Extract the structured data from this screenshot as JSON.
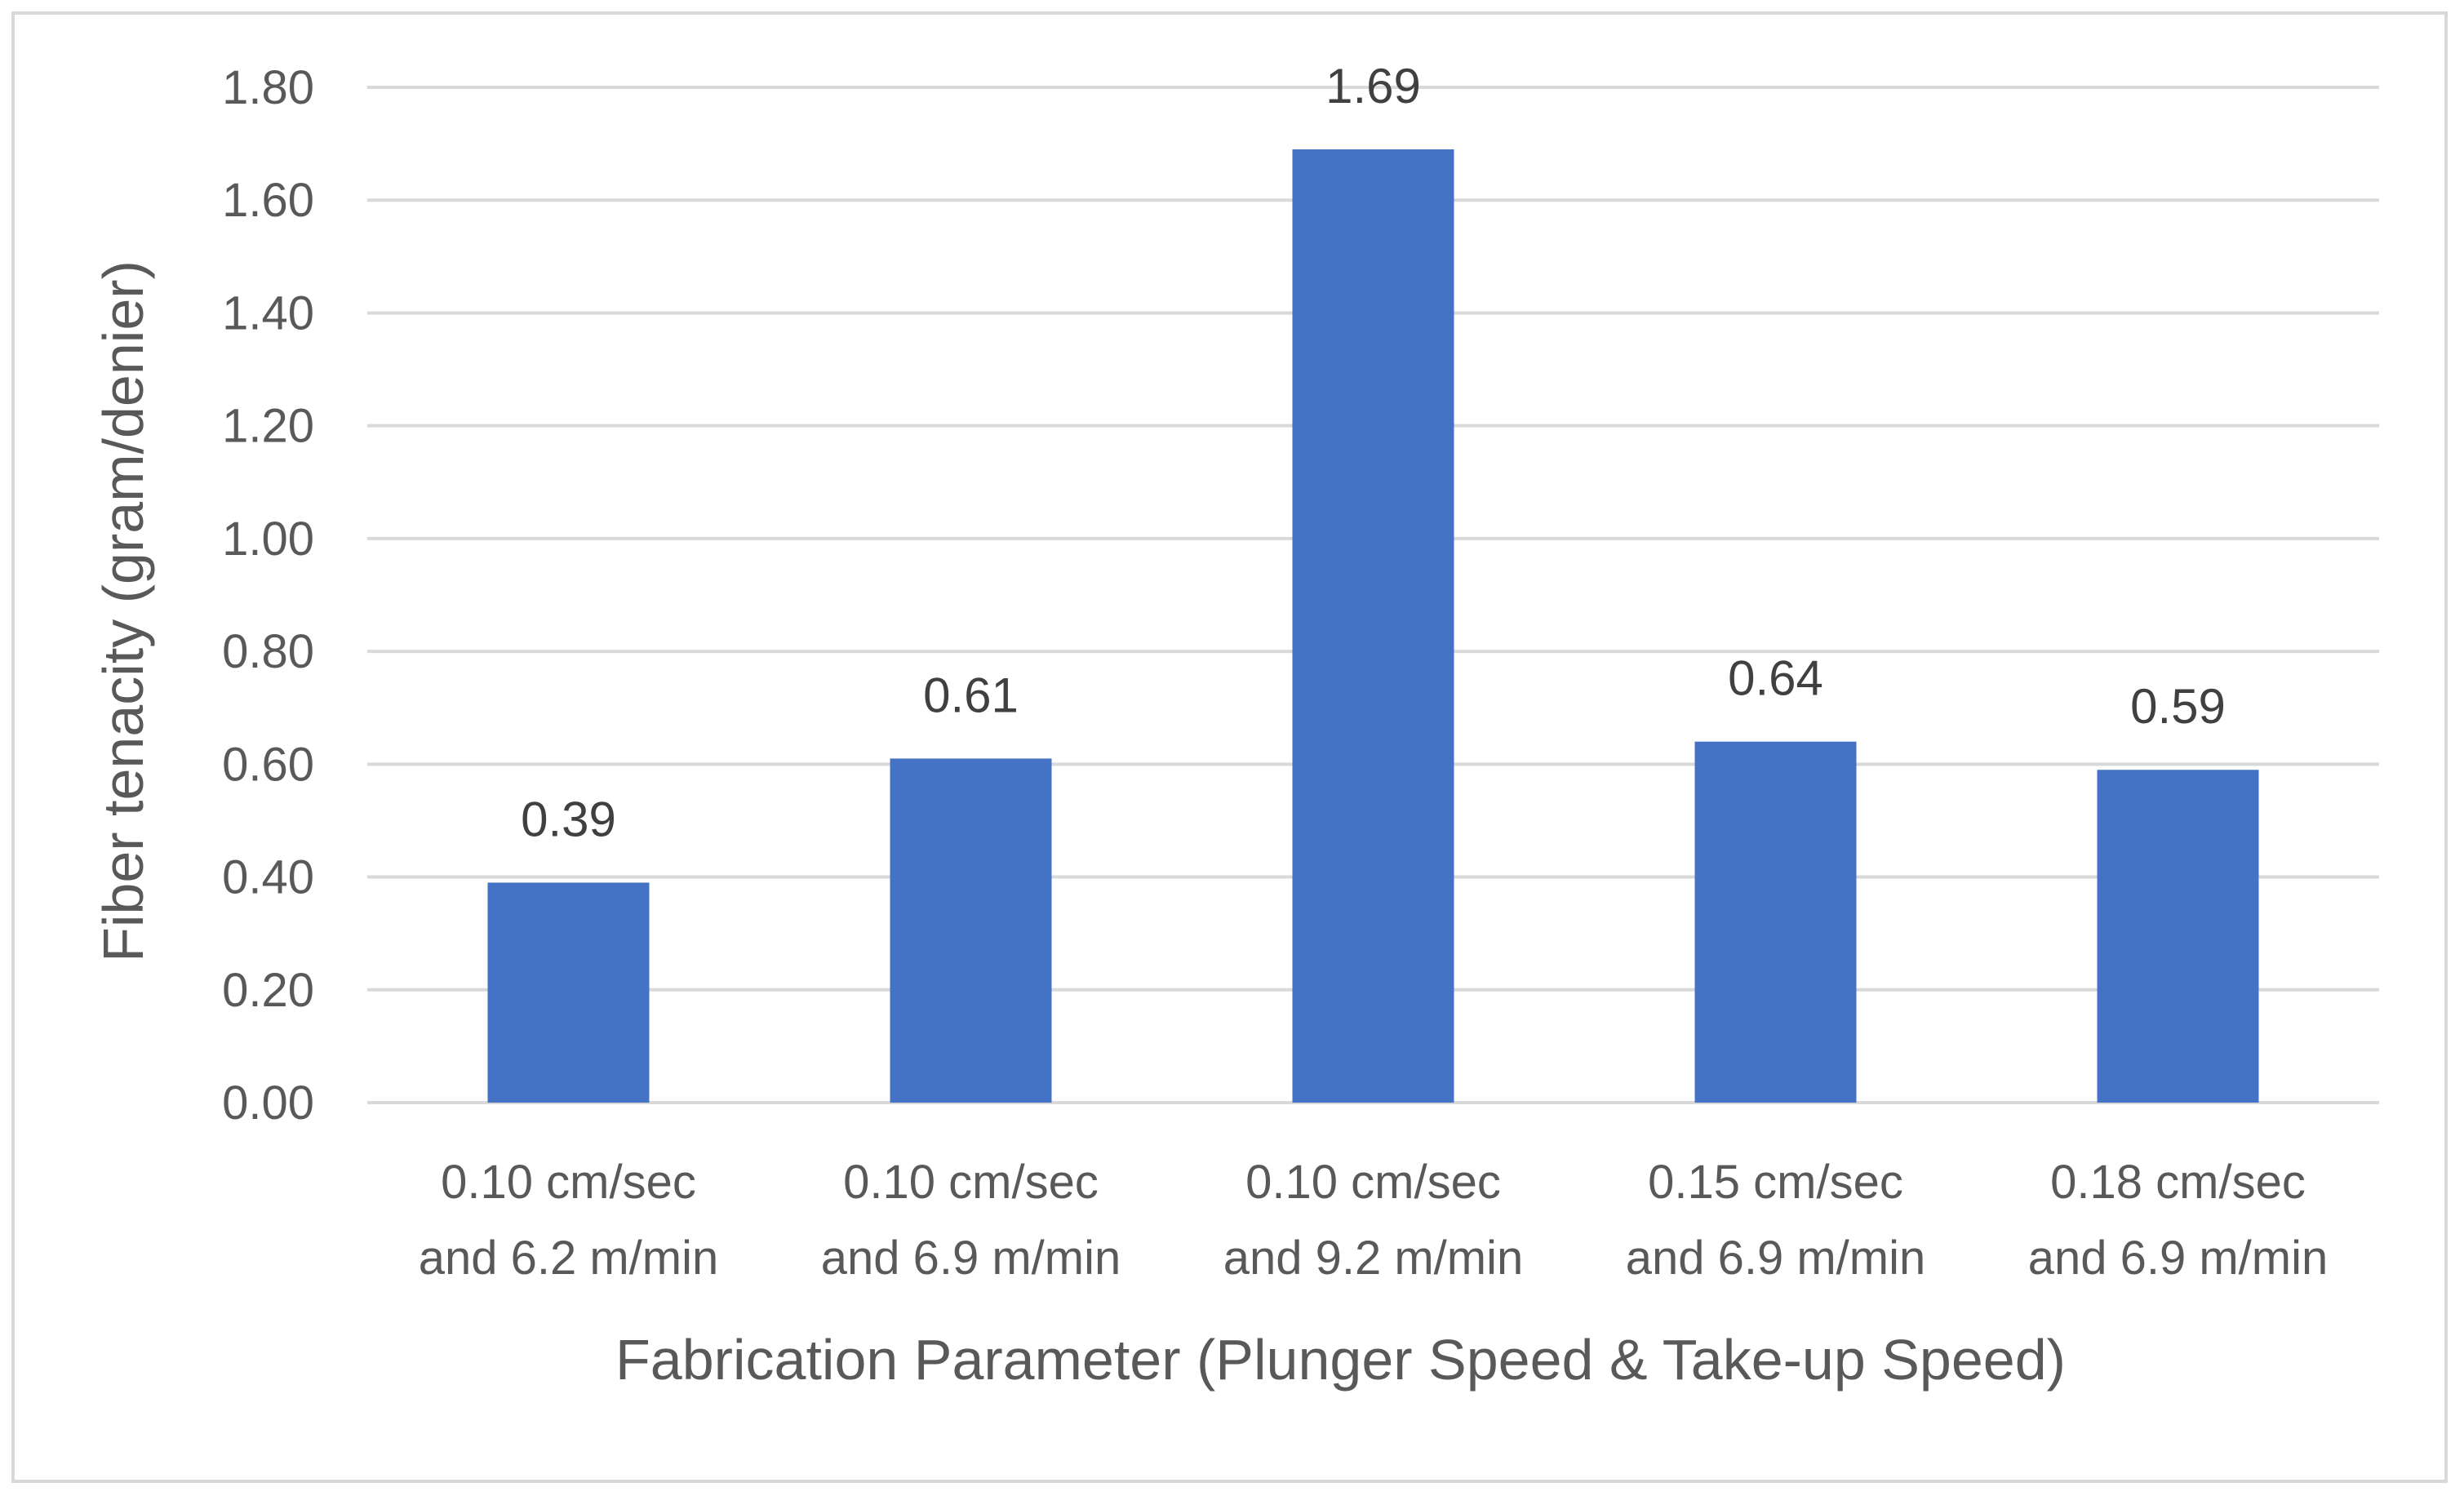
{
  "chart_data": {
    "type": "bar",
    "title": "",
    "xlabel": "Fabrication Parameter (Plunger Speed & Take-up Speed)",
    "ylabel": "Fiber tenacity (gram/denier)",
    "categories": [
      [
        "0.10 cm/sec",
        "and 6.2 m/min"
      ],
      [
        "0.10 cm/sec",
        "and 6.9 m/min"
      ],
      [
        "0.10 cm/sec",
        "and 9.2 m/min"
      ],
      [
        "0.15 cm/sec",
        "and 6.9 m/min"
      ],
      [
        "0.18 cm/sec",
        "and 6.9 m/min"
      ]
    ],
    "series": [
      {
        "name": "Fiber tenacity",
        "values": [
          0.39,
          0.61,
          1.69,
          0.64,
          0.59
        ],
        "value_labels": [
          "0.39",
          "0.61",
          "1.69",
          "0.64",
          "0.59"
        ]
      }
    ],
    "ylim": [
      0,
      1.8
    ],
    "yticks": [
      "0.00",
      "0.20",
      "0.40",
      "0.60",
      "0.80",
      "1.00",
      "1.20",
      "1.40",
      "1.60",
      "1.80"
    ],
    "grid": true,
    "legend": "none",
    "colors": {
      "bar": "#4472c4"
    }
  }
}
